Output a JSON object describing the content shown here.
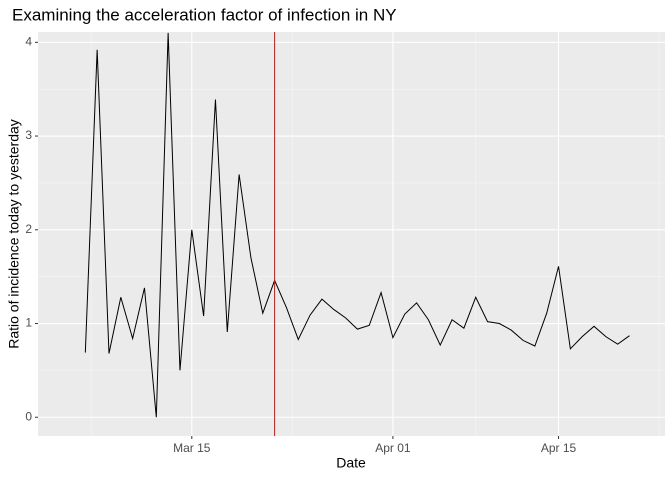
{
  "chart_data": {
    "type": "line",
    "title": "Examining the acceleration factor of infection in NY",
    "x_label": "Date",
    "y_label": "Ratio of incidence today to yesterday",
    "x": [
      "Mar 06",
      "Mar 07",
      "Mar 08",
      "Mar 09",
      "Mar 10",
      "Mar 11",
      "Mar 12",
      "Mar 13",
      "Mar 14",
      "Mar 15",
      "Mar 16",
      "Mar 17",
      "Mar 18",
      "Mar 19",
      "Mar 20",
      "Mar 21",
      "Mar 22",
      "Mar 23",
      "Mar 24",
      "Mar 25",
      "Mar 26",
      "Mar 27",
      "Mar 28",
      "Mar 29",
      "Mar 30",
      "Mar 31",
      "Apr 01",
      "Apr 02",
      "Apr 03",
      "Apr 04",
      "Apr 05",
      "Apr 06",
      "Apr 07",
      "Apr 08",
      "Apr 09",
      "Apr 10",
      "Apr 11",
      "Apr 12",
      "Apr 13",
      "Apr 14",
      "Apr 15",
      "Apr 16",
      "Apr 17",
      "Apr 18",
      "Apr 19",
      "Apr 20",
      "Apr 21"
    ],
    "values": [
      0.69,
      3.92,
      0.68,
      1.28,
      0.84,
      1.38,
      0,
      4.1,
      0.5,
      2.0,
      1.08,
      3.39,
      0.91,
      2.59,
      1.7,
      1.11,
      1.46,
      1.17,
      0.83,
      1.09,
      1.26,
      1.15,
      1.06,
      0.94,
      0.98,
      1.33,
      0.85,
      1.1,
      1.22,
      1.04,
      0.77,
      1.04,
      0.95,
      1.28,
      1.02,
      1.0,
      0.93,
      0.82,
      0.76,
      1.11,
      1.61,
      0.73,
      0.86,
      0.97,
      0.86,
      0.78,
      0.87
    ],
    "color": "#000000",
    "vline": {
      "x": "Mar 22",
      "color": "#ff0000"
    },
    "xlim": [
      "Mar 02",
      "Apr 24"
    ],
    "xticks": [
      "Mar 15",
      "Apr 01",
      "Apr 15"
    ],
    "ylim": [
      -0.2,
      4.11
    ],
    "yticks": [
      0,
      1,
      2,
      3,
      4
    ],
    "grid": true
  }
}
